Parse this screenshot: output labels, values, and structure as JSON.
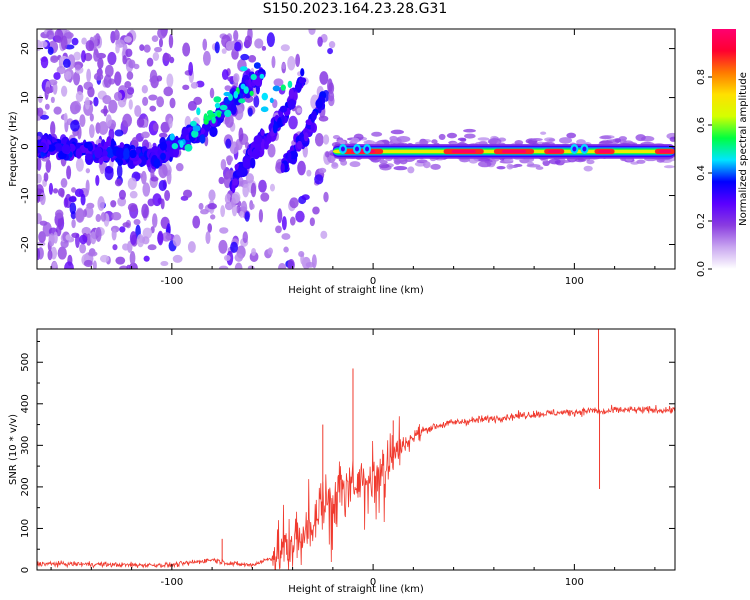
{
  "title": "S150.2023.164.23.28.G31",
  "chart_data": [
    {
      "type": "heatmap",
      "title": "S150.2023.164.23.28.G31",
      "xlabel": "Height of straight line (km)",
      "ylabel": "Frequency (Hz)",
      "xlim": [
        -167,
        150
      ],
      "ylim": [
        -25,
        24
      ],
      "xticks": [
        -100,
        0,
        100
      ],
      "yticks": [
        -20,
        -10,
        0,
        10,
        20
      ],
      "colorbar": {
        "label": "Normalized spectral amplitude",
        "range": [
          0.0,
          1.0
        ],
        "ticks": [
          0.0,
          0.2,
          0.4,
          0.6,
          0.8
        ],
        "colormap": [
          "#ffffff",
          "#c9a6f0",
          "#8a3ce0",
          "#5a00ff",
          "#0000ff",
          "#00e5ff",
          "#00ff40",
          "#d4ff00",
          "#ffe000",
          "#ff7a00",
          "#ff0030",
          "#ff0070"
        ]
      },
      "features": {
        "noisy_region_x": [
          -167,
          -20
        ],
        "diagonal_ridge": [
          [
            -167,
            0
          ],
          [
            -110,
            -2
          ],
          [
            -95,
            1
          ],
          [
            -80,
            5
          ],
          [
            -70,
            9
          ],
          [
            -60,
            13
          ],
          [
            -55,
            15
          ]
        ],
        "secondary_ridges": [
          [
            [
              -70,
              -8
            ],
            [
              -60,
              -1
            ],
            [
              -50,
              3
            ],
            [
              -42,
              8
            ],
            [
              -35,
              14
            ]
          ],
          [
            [
              -45,
              -5
            ],
            [
              -38,
              0
            ],
            [
              -30,
              5
            ],
            [
              -25,
              10
            ]
          ]
        ],
        "carrier_line_x": [
          -20,
          150
        ],
        "carrier_line_y": -1,
        "peak_segments_x": [
          [
            -15,
            5
          ],
          [
            35,
            55
          ],
          [
            60,
            80
          ],
          [
            85,
            95
          ],
          [
            110,
            120
          ],
          [
            140,
            150
          ]
        ]
      }
    },
    {
      "type": "line",
      "xlabel": "Height of straight line (km)",
      "ylabel": "SNR (10 * v/v)",
      "xlim": [
        -167,
        150
      ],
      "ylim": [
        0,
        580
      ],
      "xticks": [
        -100,
        0,
        100
      ],
      "yticks": [
        0,
        100,
        200,
        300,
        400,
        500
      ],
      "color": "#f03a2e",
      "series": [
        {
          "x": [
            -167,
            -140,
            -120,
            -100,
            -90,
            -80,
            -70,
            -60,
            -50,
            -40,
            -35,
            -30,
            -25,
            -20,
            -15,
            -10,
            -5,
            0,
            5,
            10,
            15,
            20,
            25,
            30,
            40,
            50,
            60,
            70,
            80,
            90,
            100,
            105,
            110,
            112,
            115,
            120,
            130,
            140,
            150
          ],
          "y": [
            15,
            14,
            12,
            12,
            18,
            25,
            15,
            12,
            30,
            60,
            90,
            120,
            160,
            180,
            200,
            210,
            215,
            220,
            240,
            270,
            300,
            320,
            335,
            345,
            355,
            360,
            365,
            370,
            375,
            378,
            380,
            382,
            385,
            380,
            380,
            385,
            385,
            385,
            385
          ]
        }
      ],
      "spikes": [
        {
          "x": -75,
          "y": 75
        },
        {
          "x": -25,
          "y": 350
        },
        {
          "x": -10,
          "y": 485
        },
        {
          "x": 10,
          "y": 360
        },
        {
          "x": 112,
          "y": 580
        },
        {
          "x": 112.5,
          "y": 195
        }
      ]
    }
  ]
}
